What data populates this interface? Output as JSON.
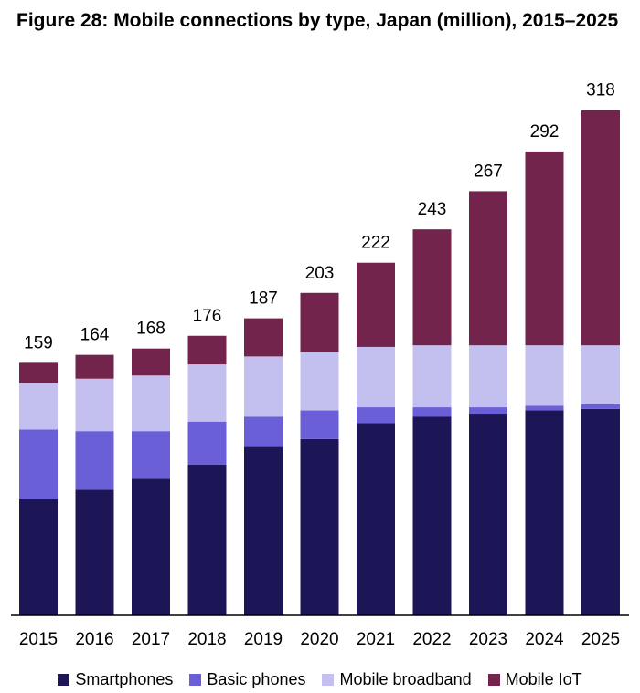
{
  "chart_data": {
    "type": "bar",
    "stacked": true,
    "title": "Figure 28: Mobile connections by type, Japan (million), 2015–2025",
    "xlabel": "",
    "ylabel": "",
    "ylim": [
      0,
      330
    ],
    "grid": false,
    "legend_position": "bottom",
    "categories": [
      "2015",
      "2016",
      "2017",
      "2018",
      "2019",
      "2020",
      "2021",
      "2022",
      "2023",
      "2024",
      "2025"
    ],
    "totals": [
      159,
      164,
      168,
      176,
      187,
      203,
      222,
      243,
      267,
      292,
      318
    ],
    "total_labels": [
      "159",
      "164",
      "168",
      "176",
      "187",
      "203",
      "222",
      "243",
      "267",
      "292",
      "318"
    ],
    "series": [
      {
        "name": "Smartphones",
        "color": "#1c1656",
        "values": [
          73,
          79,
          86,
          95,
          106,
          111,
          121,
          125,
          127,
          129,
          130
        ]
      },
      {
        "name": "Basic phones",
        "color": "#6a5fd6",
        "values": [
          44,
          37,
          30,
          27,
          19,
          18,
          10,
          6,
          4,
          3,
          3
        ]
      },
      {
        "name": "Mobile broadband",
        "color": "#c3c0ef",
        "values": [
          29,
          33,
          35,
          36,
          38,
          37,
          38,
          39,
          39,
          38,
          37
        ]
      },
      {
        "name": "Mobile IoT",
        "color": "#72244d",
        "values": [
          13,
          15,
          17,
          18,
          24,
          37,
          53,
          73,
          97,
          122,
          148
        ]
      }
    ]
  }
}
